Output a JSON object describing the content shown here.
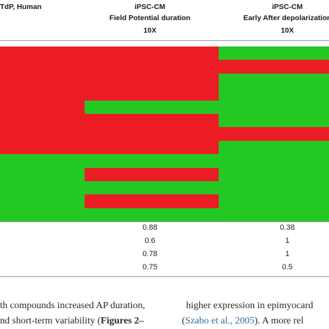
{
  "header": {
    "col1_title": "TdP, Human",
    "col2_line1": "iPSC-CM",
    "col2_line2": "Field Potential duration",
    "col2_line3": "10X",
    "col3_line1": "iPSC-CM",
    "col3_line2": "Early After depolarization",
    "col3_line3": "10X"
  },
  "colors": {
    "red": "#ec1c24",
    "green": "#23c823",
    "rule": "#9a9a9a"
  },
  "heatmap": {
    "rows": [
      [
        "red",
        "red",
        "red",
        "green"
      ],
      [
        "red",
        "red",
        "red",
        "red"
      ],
      [
        "red",
        "red",
        "red",
        "green"
      ],
      [
        "red",
        "red",
        "red",
        "green"
      ],
      [
        "red",
        "red",
        "green",
        "green"
      ],
      [
        "red",
        "red",
        "red",
        "green"
      ],
      [
        "red",
        "red",
        "red",
        "red"
      ],
      [
        "red",
        "red",
        "red",
        "green"
      ],
      [
        "green",
        "green",
        "green",
        "green"
      ],
      [
        "green",
        "green",
        "red",
        "green"
      ],
      [
        "green",
        "green",
        "green",
        "green"
      ],
      [
        "green",
        "green",
        "red",
        "green"
      ],
      [
        "green",
        "green",
        "green",
        "green"
      ]
    ]
  },
  "values": {
    "col2": [
      "0.88",
      "0.6",
      "0.78",
      "0.75"
    ],
    "col3": [
      "0.38",
      "1",
      "1",
      "0.5"
    ]
  },
  "body_text": {
    "left_line1": "th compounds increased AP duration,",
    "left_line2_pre": "nd short-term variability (",
    "left_line2_bold": "Figures 2–",
    "right_line1": "higher expression in epimyocard",
    "right_line2_pre": "(",
    "right_line2_link": "Szabo et al., 2005",
    "right_line2_post": "). A more rel"
  }
}
